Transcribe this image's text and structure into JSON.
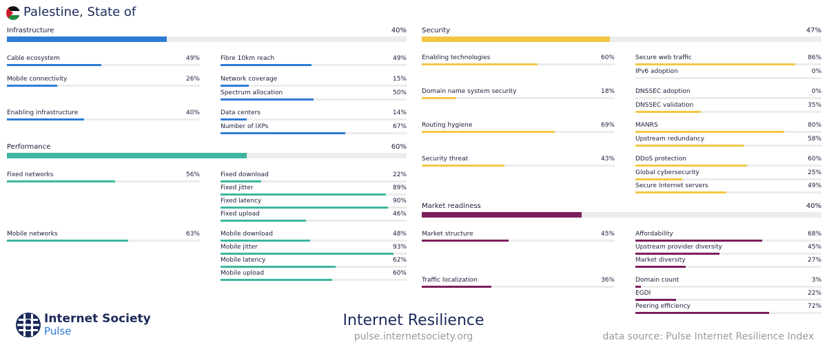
{
  "country": "Palestine, State of",
  "footer": {
    "org": "Internet Society",
    "product": "Pulse",
    "report": "Internet Resilience",
    "url": "pulse.internetsociety.org",
    "source": "data source: Pulse Internet Resilience Index"
  },
  "colors": {
    "infrastructure": "#2e7bd6",
    "performance": "#3db5a0",
    "security": "#f2c744",
    "market": "#7b1e5c",
    "track": "#ececec"
  },
  "chart_data": {
    "type": "bar",
    "unit": "%",
    "xlim": [
      0,
      100
    ],
    "pillars": [
      {
        "key": "infrastructure",
        "name": "Infrastructure",
        "value": 40,
        "groups": [
          {
            "name": "Cable ecosystem",
            "value": 49,
            "indicators": [
              {
                "name": "Fibre 10km reach",
                "value": 49
              }
            ]
          },
          {
            "name": "Mobile connectivity",
            "value": 26,
            "indicators": [
              {
                "name": "Network coverage",
                "value": 15
              },
              {
                "name": "Spectrum allocation",
                "value": 50
              }
            ]
          },
          {
            "name": "Enabling infrastructure",
            "value": 40,
            "indicators": [
              {
                "name": "Data centers",
                "value": 14
              },
              {
                "name": "Number of IXPs",
                "value": 67
              }
            ]
          }
        ]
      },
      {
        "key": "performance",
        "name": "Performance",
        "value": 60,
        "groups": [
          {
            "name": "Fixed networks",
            "value": 56,
            "indicators": [
              {
                "name": "Fixed download",
                "value": 22
              },
              {
                "name": "Fixed jitter",
                "value": 89
              },
              {
                "name": "Fixed latency",
                "value": 90
              },
              {
                "name": "Fixed upload",
                "value": 46
              }
            ]
          },
          {
            "name": "Mobile networks",
            "value": 63,
            "indicators": [
              {
                "name": "Mobile download",
                "value": 48
              },
              {
                "name": "Mobile jitter",
                "value": 93
              },
              {
                "name": "Mobile latency",
                "value": 62
              },
              {
                "name": "Mobile upload",
                "value": 60
              }
            ]
          }
        ]
      },
      {
        "key": "security",
        "name": "Security",
        "value": 47,
        "groups": [
          {
            "name": "Enabling technologies",
            "value": 60,
            "indicators": [
              {
                "name": "Secure web traffic",
                "value": 86
              },
              {
                "name": "IPv6 adoption",
                "value": 0
              }
            ]
          },
          {
            "name": "Domain name system security",
            "value": 18,
            "indicators": [
              {
                "name": "DNSSEC adoption",
                "value": 0
              },
              {
                "name": "DNSSEC validation",
                "value": 35
              }
            ]
          },
          {
            "name": "Routing hygiene",
            "value": 69,
            "indicators": [
              {
                "name": "MANRS",
                "value": 80
              },
              {
                "name": "Upstream redundancy",
                "value": 58
              }
            ]
          },
          {
            "name": "Security threat",
            "value": 43,
            "indicators": [
              {
                "name": "DDoS protection",
                "value": 60
              },
              {
                "name": "Global cybersecurity",
                "value": 25
              },
              {
                "name": "Secure Internet servers",
                "value": 49
              }
            ]
          }
        ]
      },
      {
        "key": "market",
        "name": "Market readiness",
        "value": 40,
        "groups": [
          {
            "name": "Market structure",
            "value": 45,
            "indicators": [
              {
                "name": "Affordability",
                "value": 68
              },
              {
                "name": "Upstream provider diversity",
                "value": 45
              },
              {
                "name": "Market diversity",
                "value": 27
              }
            ]
          },
          {
            "name": "Traffic localization",
            "value": 36,
            "indicators": [
              {
                "name": "Domain count",
                "value": 3
              },
              {
                "name": "EGDI",
                "value": 22
              },
              {
                "name": "Peering efficiency",
                "value": 72
              }
            ]
          }
        ]
      }
    ]
  }
}
